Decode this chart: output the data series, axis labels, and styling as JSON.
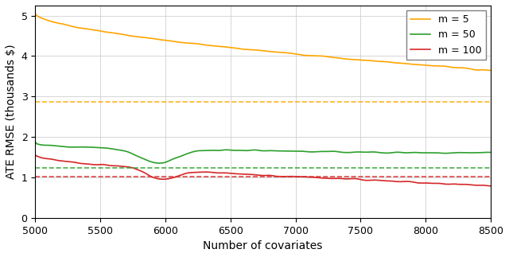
{
  "title": "",
  "xlabel": "Number of covariates",
  "ylabel": "ATE RMSE (thousands $)",
  "xlim": [
    5000,
    8500
  ],
  "ylim": [
    0,
    5.25
  ],
  "xticks": [
    5000,
    5500,
    6000,
    6500,
    7000,
    7500,
    8000,
    8500
  ],
  "yticks": [
    0,
    1,
    2,
    3,
    4,
    5
  ],
  "legend": [
    "m = 5",
    "m = 50",
    "m = 100"
  ],
  "colors": {
    "m5": "#FFA500",
    "m50": "#2CA02C",
    "m100": "#D62728"
  },
  "dashed_lines": {
    "m5": 2.86,
    "m50": 1.23,
    "m100": 1.01
  },
  "background_color": "#FFFFFF",
  "grid_color": "#CCCCCC"
}
